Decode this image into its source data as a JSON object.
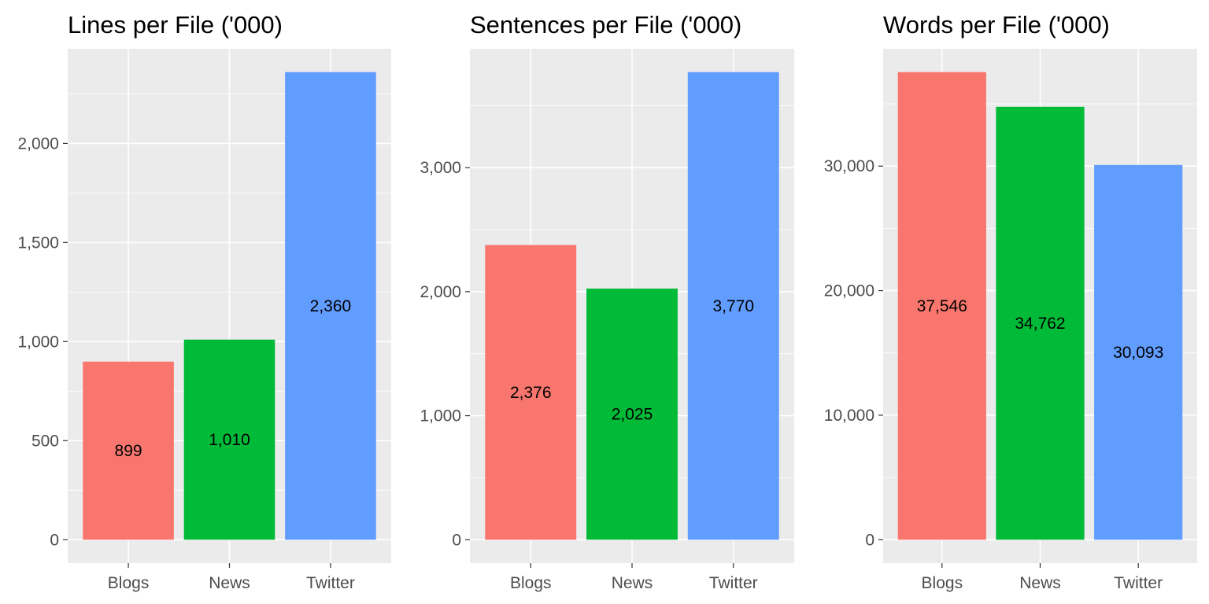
{
  "chart_data": [
    {
      "type": "bar",
      "title": "Lines per File ('000)",
      "xlabel": "",
      "ylabel": "",
      "categories": [
        "Blogs",
        "News",
        "Twitter"
      ],
      "values": [
        899,
        1010,
        2360
      ],
      "value_labels": [
        "899",
        "1,010",
        "2,360"
      ],
      "colors": [
        "#F8766D",
        "#00BA38",
        "#619CFF"
      ],
      "ylim": [
        0,
        2360
      ],
      "yticks": [
        0,
        500,
        1000,
        1500,
        2000
      ],
      "ytick_labels": [
        "0",
        "500",
        "1,000",
        "1,500",
        "2,000"
      ],
      "grid": true,
      "legend": "none"
    },
    {
      "type": "bar",
      "title": "Sentences per File ('000)",
      "xlabel": "",
      "ylabel": "",
      "categories": [
        "Blogs",
        "News",
        "Twitter"
      ],
      "values": [
        2376,
        2025,
        3770
      ],
      "value_labels": [
        "2,376",
        "2,025",
        "3,770"
      ],
      "colors": [
        "#F8766D",
        "#00BA38",
        "#619CFF"
      ],
      "ylim": [
        0,
        3770
      ],
      "yticks": [
        0,
        1000,
        2000,
        3000
      ],
      "ytick_labels": [
        "0",
        "1,000",
        "2,000",
        "3,000"
      ],
      "grid": true,
      "legend": "none"
    },
    {
      "type": "bar",
      "title": "Words per File ('000)",
      "xlabel": "",
      "ylabel": "",
      "categories": [
        "Blogs",
        "News",
        "Twitter"
      ],
      "values": [
        37546,
        34762,
        30093
      ],
      "value_labels": [
        "37,546",
        "34,762",
        "30,093"
      ],
      "colors": [
        "#F8766D",
        "#00BA38",
        "#619CFF"
      ],
      "ylim": [
        0,
        37546
      ],
      "yticks": [
        0,
        10000,
        20000,
        30000
      ],
      "ytick_labels": [
        "0",
        "10,000",
        "20,000",
        "30,000"
      ],
      "grid": true,
      "legend": "none"
    }
  ]
}
